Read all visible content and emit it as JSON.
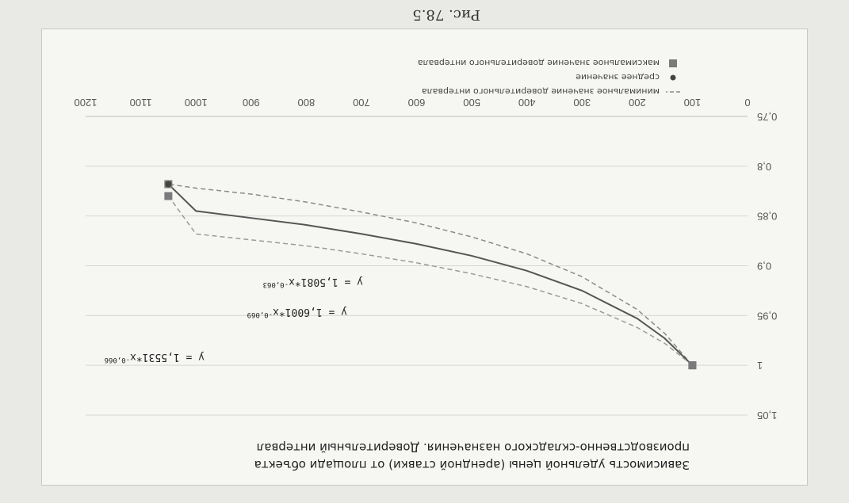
{
  "caption": "Рис. 78.5",
  "chart_data": {
    "type": "line",
    "title": "Зависимость удельной цены (арендной ставки) от площади объекта производственно-складского назначения. Доверительный интервал",
    "title_lines": [
      "Зависимость удельной цены (арендной ставки) от площади объекта",
      "производственно-складского назначения. Доверительный интервал"
    ],
    "xlim": [
      0,
      1200
    ],
    "ylim": [
      0.75,
      1.05
    ],
    "x_ticks": [
      0,
      100,
      200,
      300,
      400,
      500,
      600,
      700,
      800,
      900,
      1000,
      1100,
      1200
    ],
    "x_tick_labels": [
      "0",
      "100",
      "200",
      "300",
      "400",
      "500",
      "600",
      "700",
      "800",
      "900",
      "1000",
      "1100",
      "1200"
    ],
    "y_ticks": [
      0.75,
      0.8,
      0.85,
      0.9,
      0.95,
      1.0,
      1.05
    ],
    "y_tick_labels": [
      "0,75",
      "0,8",
      "0,85",
      "0,9",
      "0,95",
      "1",
      "1,05"
    ],
    "grid": true,
    "legend_position": "bottom",
    "series": [
      {
        "name": "минимальное значение доверительного интервала",
        "equation": "y = 1,5081*x",
        "equation_exponent": "-0,063",
        "color": "#8a8a8a",
        "style": "dashed",
        "x": [
          100,
          150,
          200,
          300,
          400,
          500,
          600,
          700,
          800,
          900,
          1000,
          1050
        ],
        "y": [
          1.0,
          0.968,
          0.944,
          0.911,
          0.888,
          0.871,
          0.857,
          0.846,
          0.836,
          0.828,
          0.822,
          0.818
        ]
      },
      {
        "name": "среднее значение",
        "equation": "y = 1,6001*x",
        "equation_exponent": "-0,069",
        "color": "#555555",
        "style": "solid",
        "x": [
          100,
          150,
          200,
          300,
          400,
          500,
          600,
          700,
          800,
          900,
          1000,
          1050
        ],
        "y": [
          1.0,
          0.973,
          0.953,
          0.925,
          0.905,
          0.89,
          0.878,
          0.868,
          0.859,
          0.852,
          0.845,
          0.818
        ]
      },
      {
        "name": "максимальное значение доверительного интервала",
        "equation": "y = 1,5531*x",
        "equation_exponent": "-0,066",
        "color": "#9a9a9a",
        "style": "dashed",
        "x": [
          100,
          150,
          200,
          300,
          400,
          500,
          600,
          700,
          800,
          900,
          1000,
          1050
        ],
        "y": [
          1.0,
          0.978,
          0.962,
          0.938,
          0.921,
          0.908,
          0.897,
          0.888,
          0.88,
          0.874,
          0.868,
          0.83
        ]
      }
    ]
  }
}
